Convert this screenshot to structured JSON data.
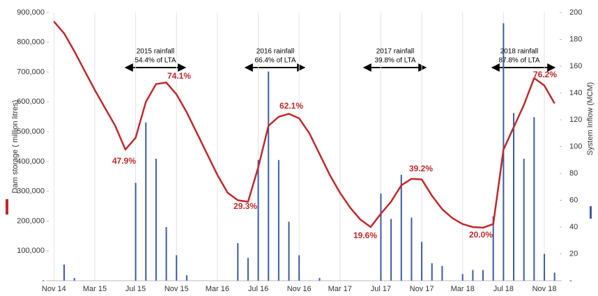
{
  "chart_data": {
    "type": "line_bar",
    "categories": [
      "Nov 14",
      null,
      null,
      null,
      "Mar 15",
      null,
      null,
      null,
      "Jul 15",
      null,
      null,
      null,
      "Nov 15",
      null,
      null,
      null,
      "Mar 16",
      null,
      null,
      null,
      "Jul 16",
      null,
      null,
      null,
      "Nov 16",
      null,
      null,
      null,
      "Mar 17",
      null,
      null,
      null,
      "Jul 17",
      null,
      null,
      null,
      "Nov 17",
      null,
      null,
      null,
      "Mar 18",
      null,
      null,
      null,
      "Jul 18",
      null,
      null,
      null,
      "Nov 18",
      null
    ],
    "series": [
      {
        "name": "Dam storage ( million litres)",
        "color": "#c0282a",
        "axis": "y",
        "values": [
          870000,
          830000,
          770000,
          705000,
          640000,
          580000,
          520000,
          440000,
          480000,
          600000,
          660000,
          665000,
          625000,
          565000,
          495000,
          425000,
          355000,
          295000,
          270000,
          265000,
          380000,
          520000,
          550000,
          560000,
          545000,
          495000,
          425000,
          355000,
          295000,
          245000,
          205000,
          180000,
          225000,
          265000,
          320000,
          342000,
          340000,
          285000,
          240000,
          210000,
          190000,
          180000,
          178000,
          190000,
          440000,
          515000,
          590000,
          680000,
          655000,
          595000
        ]
      },
      {
        "name": "System Inflow  (MCM)",
        "color": "#3b5ba5",
        "axis": "y2",
        "values": [
          null,
          12,
          2,
          null,
          null,
          null,
          null,
          null,
          73,
          118,
          91,
          40,
          19,
          4,
          null,
          null,
          null,
          null,
          28,
          17,
          90,
          156,
          90,
          44,
          19,
          null,
          2,
          null,
          null,
          null,
          null,
          null,
          65,
          46,
          79,
          47,
          29,
          13,
          11,
          null,
          5,
          8,
          8,
          48,
          192,
          125,
          91,
          122,
          20,
          6
        ]
      }
    ],
    "ylim": [
      0,
      900000
    ],
    "yticks": [
      {
        "value": 0,
        "label": "-"
      },
      {
        "value": 100000,
        "label": "100,000"
      },
      {
        "value": 200000,
        "label": "200,000"
      },
      {
        "value": 300000,
        "label": "300,000"
      },
      {
        "value": 400000,
        "label": "400,000"
      },
      {
        "value": 500000,
        "label": "500,000"
      },
      {
        "value": 600000,
        "label": "600,000"
      },
      {
        "value": 700000,
        "label": "700,000"
      },
      {
        "value": 800000,
        "label": "800,000"
      },
      {
        "value": 900000,
        "label": "900,000"
      }
    ],
    "y2lim": [
      0,
      200
    ],
    "y2ticks": [
      {
        "value": 0,
        "label": "-"
      },
      20,
      40,
      60,
      80,
      100,
      120,
      140,
      160,
      180,
      200
    ],
    "annotations": [
      "47.9%",
      "74.1%",
      "29.3%",
      "62.1%",
      "19.6%",
      "39.2%",
      "20.0%",
      "76.2%"
    ],
    "rainfall_notes": [
      {
        "title": "2015 rainfall",
        "text": "54.4% of LTA"
      },
      {
        "title": "2016 rainfall",
        "text": "66.4% of LTA"
      },
      {
        "title": "2017 rainfall",
        "text": "39.8% of LTA"
      },
      {
        "title": "2018 rainfall",
        "text": "87.8% of LTA"
      }
    ]
  }
}
